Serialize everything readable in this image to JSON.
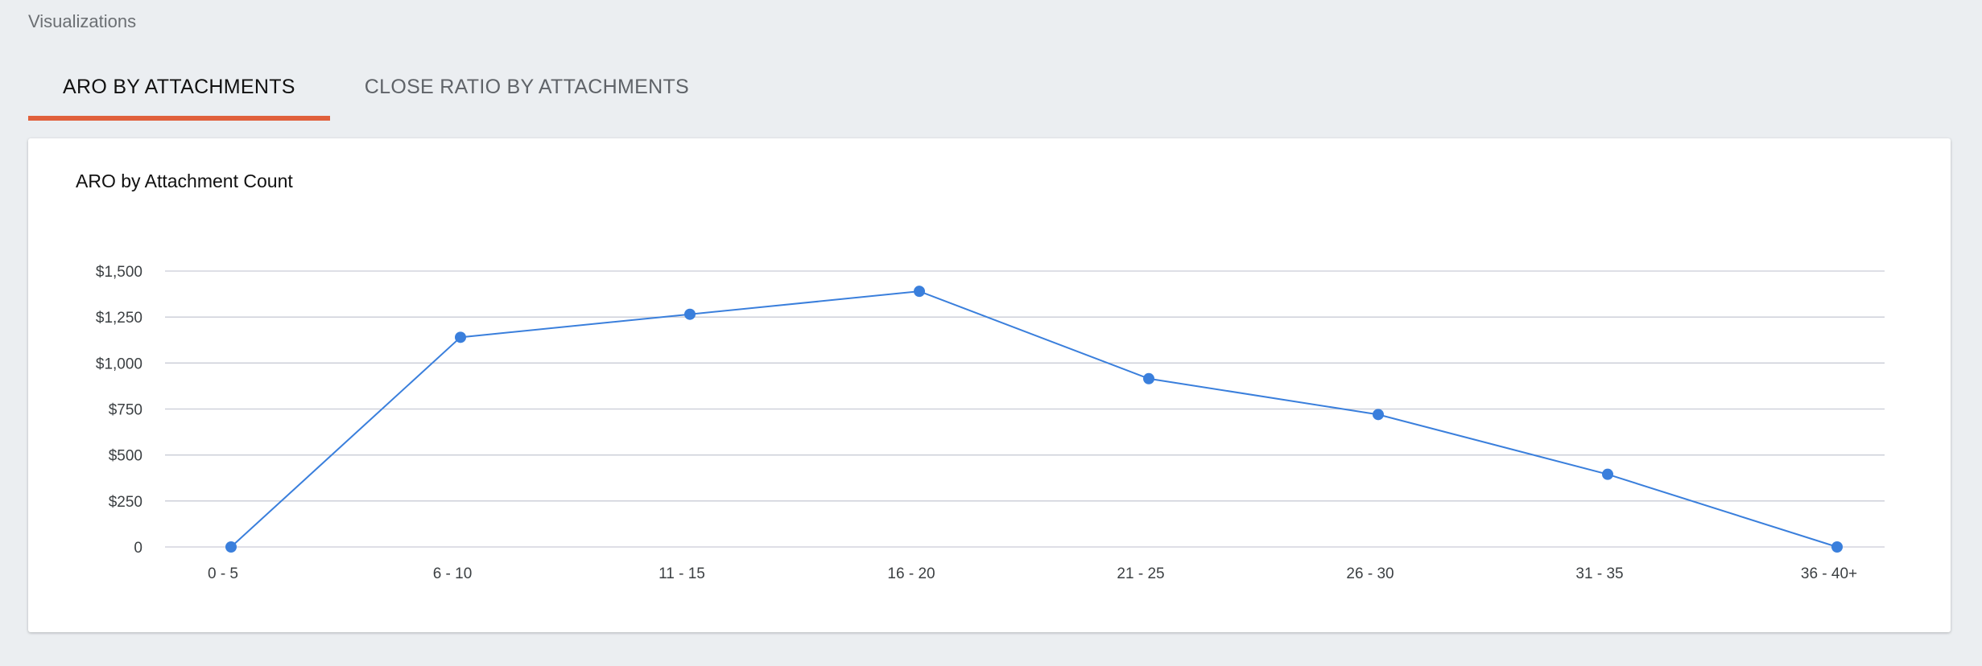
{
  "header": {
    "section_title": "Visualizations"
  },
  "tabs": [
    {
      "label": "ARO BY ATTACHMENTS",
      "active": true
    },
    {
      "label": "CLOSE RATIO BY ATTACHMENTS",
      "active": false
    }
  ],
  "colors": {
    "accent_underline": "#e0603c",
    "series_line": "#3a7fdc",
    "gridline": "#c9ccd6"
  },
  "chart_data": {
    "type": "line",
    "title": "ARO by Attachment Count",
    "xlabel": "",
    "ylabel": "",
    "categories": [
      "0 - 5",
      "6 - 10",
      "11 - 15",
      "16 - 20",
      "21 - 25",
      "26 - 30",
      "31 - 35",
      "36 - 40+"
    ],
    "series": [
      {
        "values": [
          0,
          1140,
          1265,
          1390,
          915,
          720,
          395,
          0
        ]
      }
    ],
    "ylim": [
      0,
      1500
    ],
    "y_ticks": [
      0,
      250,
      500,
      750,
      1000,
      1250,
      1500
    ],
    "y_tick_labels": [
      "0",
      "$250",
      "$500",
      "$750",
      "$1,000",
      "$1,250",
      "$1,500"
    ],
    "grid": true,
    "legend": "none"
  }
}
